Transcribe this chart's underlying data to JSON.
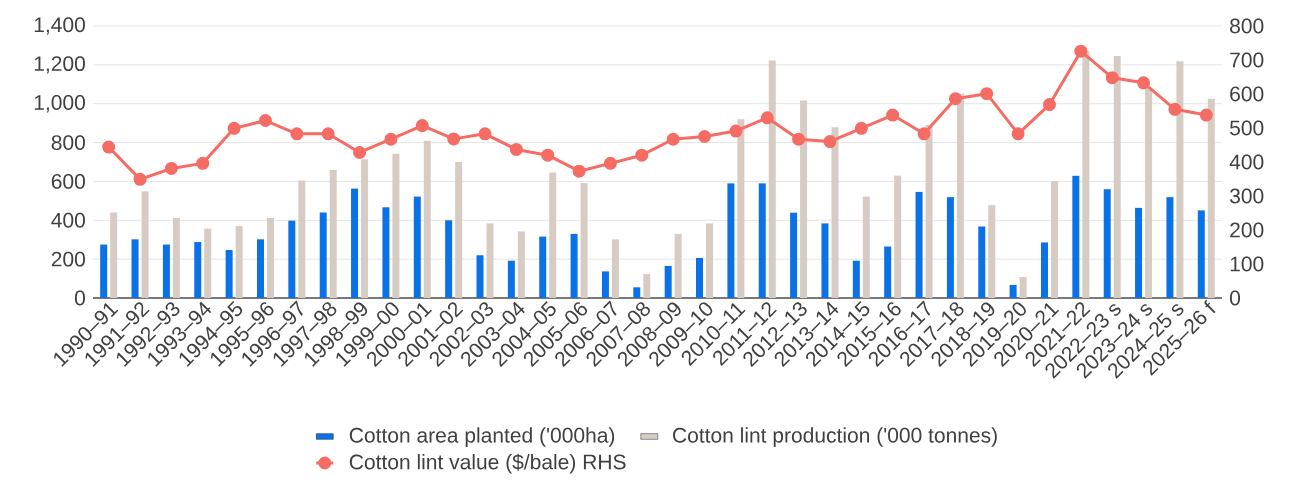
{
  "chart_data": {
    "type": "bar",
    "categories": [
      "1990–91",
      "1991–92",
      "1992–93",
      "1993–94",
      "1994–95",
      "1995–96",
      "1996–97",
      "1997–98",
      "1998–99",
      "1999–00",
      "2000–01",
      "2001–02",
      "2002–03",
      "2003–04",
      "2004–05",
      "2005–06",
      "2006–07",
      "2007–08",
      "2008–09",
      "2009–10",
      "2010–11",
      "2011–12",
      "2012–13",
      "2013–14",
      "2014–15",
      "2015–16",
      "2016–17",
      "2017–18",
      "2018–19",
      "2019–20",
      "2020–21",
      "2021–22",
      "2022–23 s",
      "2023–24 s",
      "2024–25 s",
      "2025–26 f"
    ],
    "series": [
      {
        "name": "Cotton area planted ('000ha)",
        "color": "#0a72e6",
        "values": [
          275,
          302,
          275,
          288,
          247,
          302,
          398,
          440,
          563,
          467,
          522,
          400,
          220,
          192,
          316,
          330,
          137,
          55,
          165,
          206,
          590,
          590,
          439,
          384,
          192,
          265,
          546,
          519,
          368,
          67,
          286,
          629,
          560,
          464,
          519,
          451
        ]
      },
      {
        "name": "Cotton lint production ('000 tonnes)",
        "color": "#d6ccc4",
        "values": [
          440,
          549,
          412,
          357,
          371,
          412,
          604,
          659,
          714,
          742,
          810,
          700,
          384,
          343,
          646,
          591,
          302,
          124,
          330,
          384,
          920,
          1222,
          1016,
          879,
          522,
          630,
          890,
          1052,
          478,
          108,
          601,
          1271,
          1245,
          1079,
          1218,
          1026
        ]
      },
      {
        "name": "Cotton lint value ($/bale) RHS",
        "type": "line",
        "axis": "y2",
        "color": "#f46c64",
        "values": [
          444,
          349,
          381,
          396,
          499,
          522,
          483,
          483,
          428,
          467,
          507,
          468,
          483,
          437,
          420,
          373,
          396,
          420,
          467,
          475,
          491,
          530,
          467,
          460,
          499,
          538,
          483,
          586,
          601,
          483,
          569,
          726,
          648,
          633,
          555,
          538
        ]
      }
    ],
    "ylim": [
      0,
      1400
    ],
    "yticks": [
      0,
      200,
      400,
      600,
      800,
      {
        "value": 1000,
        "label": "1,000"
      },
      {
        "value": 1200,
        "label": "1,200"
      },
      {
        "value": 1400,
        "label": "1,400"
      }
    ],
    "y2lim": [
      0,
      800
    ],
    "y2ticks": [
      0,
      100,
      200,
      300,
      400,
      500,
      600,
      700,
      800
    ],
    "grid": "y",
    "legend": "bottom",
    "marker": "circle",
    "line_style": "solid"
  }
}
